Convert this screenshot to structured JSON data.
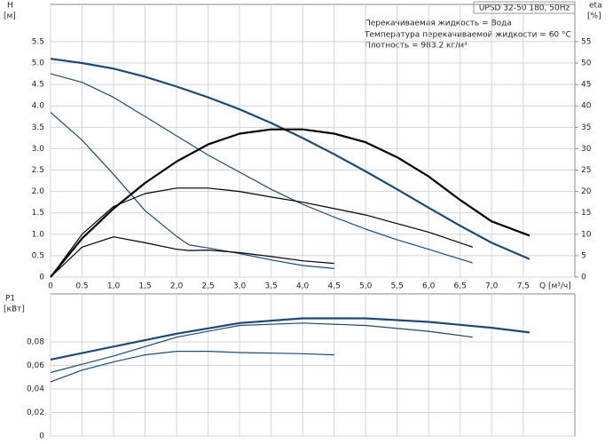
{
  "chart_data": [
    {
      "type": "line",
      "title": "UPSD 32-50 180, 50Hz",
      "annotations": [
        "Перекачиваемая жидкость = Вода",
        "Температура перекачиваемой жидкости = 60 °C",
        "Плотность = 983.2 кг/м³"
      ],
      "ylabel": "H",
      "yunit": "[м]",
      "y2label": "eta",
      "y2unit": "[%]",
      "xlabel": "Q [м³/ч]",
      "xlim": [
        0,
        8.32
      ],
      "xticks": [
        0,
        0.5,
        {
          "value": 1,
          "label": "1,0"
        },
        {
          "value": 1.5,
          "label": "1,5"
        },
        {
          "value": 2,
          "label": "2,0"
        },
        {
          "value": 2.5,
          "label": "2,5"
        },
        {
          "value": 3,
          "label": "3,0"
        },
        {
          "value": 3.5,
          "label": "3,5"
        },
        {
          "value": 4,
          "label": "4,0"
        },
        {
          "value": 4.5,
          "label": "4,5"
        },
        {
          "value": 5,
          "label": "5,0"
        },
        {
          "value": 5.5,
          "label": "5,5"
        },
        {
          "value": 6,
          "label": "6,0"
        },
        {
          "value": 6.5,
          "label": "6,5"
        },
        {
          "value": 7,
          "label": "7,0"
        },
        {
          "value": 7.5,
          "label": "7,5"
        }
      ],
      "ylim": [
        0,
        6.37
      ],
      "yticks": [
        0,
        0.5,
        {
          "value": 1,
          "label": "1.0"
        },
        1.5,
        {
          "value": 2,
          "label": "2.0"
        },
        2.5,
        {
          "value": 3,
          "label": "3.0"
        },
        3.5,
        {
          "value": 4,
          "label": "4.0"
        },
        4.5,
        {
          "value": 5,
          "label": "5.0"
        },
        5.5
      ],
      "y2lim": [
        0,
        63.7
      ],
      "y2ticks": [
        0,
        5,
        10,
        15,
        20,
        25,
        30,
        35,
        40,
        45,
        50,
        55
      ],
      "grid": true,
      "series": [
        {
          "color": "#1d4a75",
          "x": [
            0,
            0.5,
            1,
            1.5,
            2,
            2.5,
            3,
            3.5,
            4,
            4.5,
            5,
            5.5,
            6,
            6.5,
            7,
            7.6
          ],
          "values": [
            5.1,
            5.0,
            4.87,
            4.68,
            4.45,
            4.2,
            3.92,
            3.6,
            3.25,
            2.87,
            2.47,
            2.05,
            1.62,
            1.2,
            0.8,
            0.42
          ]
        },
        {
          "color": "#1d4a75",
          "x": [
            0,
            0.5,
            1,
            1.5,
            2,
            2.5,
            3,
            3.5,
            4,
            4.5,
            5,
            5.5,
            6,
            6.7
          ],
          "values": [
            4.75,
            4.55,
            4.2,
            3.75,
            3.3,
            2.85,
            2.45,
            2.05,
            1.7,
            1.4,
            1.12,
            0.87,
            0.65,
            0.33
          ]
        },
        {
          "color": "#1d4a75",
          "x": [
            0,
            0.5,
            1,
            1.5,
            2,
            2.2,
            2.5,
            3,
            3.5,
            4,
            4.5
          ],
          "values": [
            3.85,
            3.2,
            2.4,
            1.55,
            0.95,
            0.75,
            0.68,
            0.55,
            0.4,
            0.27,
            0.2
          ]
        },
        {
          "color": "#000000",
          "axis": "y2",
          "x": [
            0,
            0.5,
            1,
            1.5,
            2,
            2.5,
            3,
            3.5,
            4,
            4.5,
            5,
            5.5,
            6,
            6.5,
            7,
            7.6
          ],
          "values": [
            0,
            9,
            16,
            22,
            27,
            31,
            33.5,
            34.5,
            34.5,
            33.5,
            31.5,
            28,
            23.5,
            18,
            13,
            9.7
          ]
        },
        {
          "color": "#000000",
          "axis": "y2",
          "x": [
            0,
            0.5,
            1,
            1.5,
            2,
            2.5,
            3,
            3.5,
            4,
            4.5,
            5,
            5.5,
            6,
            6.7
          ],
          "values": [
            0,
            10,
            16.5,
            19.5,
            20.8,
            20.8,
            20,
            18.7,
            17.5,
            16,
            14.5,
            12.5,
            10.5,
            7
          ]
        },
        {
          "color": "#000000",
          "axis": "y2",
          "x": [
            0,
            0.5,
            1,
            1.5,
            2,
            2.2,
            2.5,
            3,
            3.5,
            4,
            4.5
          ],
          "values": [
            0,
            7,
            9.4,
            8,
            6.5,
            6.2,
            6.3,
            5.7,
            4.8,
            3.8,
            3.2
          ]
        }
      ]
    },
    {
      "type": "line",
      "ylabel": "P1",
      "yunit": "[кВт]",
      "xlim": [
        0,
        8.32
      ],
      "xticks": [
        0,
        0.5,
        1,
        1.5,
        2,
        2.5,
        3,
        3.5,
        4,
        4.5,
        5,
        5.5,
        6,
        6.5,
        7,
        7.5
      ],
      "ylim": [
        0,
        0.1208
      ],
      "yticks": [
        0,
        {
          "value": 0.02,
          "label": "0,02"
        },
        {
          "value": 0.04,
          "label": "0,04"
        },
        {
          "value": 0.06,
          "label": "0,06"
        },
        {
          "value": 0.08,
          "label": "0,08"
        }
      ],
      "grid": true,
      "series": [
        {
          "color": "#1d4a75",
          "x": [
            0,
            1,
            2,
            3,
            4,
            5,
            6,
            7,
            7.6
          ],
          "values": [
            0.065,
            0.076,
            0.087,
            0.096,
            0.1,
            0.1,
            0.097,
            0.092,
            0.088
          ]
        },
        {
          "color": "#1d4a75",
          "x": [
            0,
            1,
            2,
            3,
            4,
            5,
            6,
            6.7
          ],
          "values": [
            0.054,
            0.068,
            0.084,
            0.094,
            0.096,
            0.094,
            0.089,
            0.084
          ]
        },
        {
          "color": "#1d4a75",
          "x": [
            0,
            0.5,
            1,
            1.5,
            2,
            2.5,
            3,
            4,
            4.5
          ],
          "values": [
            0.046,
            0.056,
            0.063,
            0.069,
            0.072,
            0.072,
            0.071,
            0.07,
            0.069
          ]
        }
      ]
    }
  ]
}
